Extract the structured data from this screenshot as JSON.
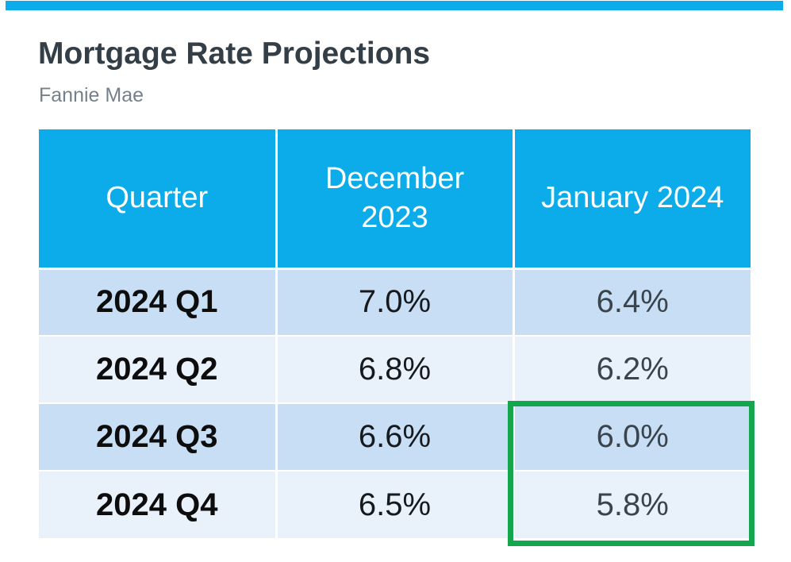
{
  "page": {
    "title": "Mortgage Rate Projections",
    "subtitle": "Fannie Mae"
  },
  "colors": {
    "accent_bar": "#0BACE9",
    "header_bg": "#0BACE9",
    "header_text": "#FFFFFF",
    "row_odd_bg": "#C8DEF4",
    "row_even_bg": "#E9F1FA",
    "quarter_text": "#0D0D0D",
    "december_value_text": "#16191D",
    "january_value_text": "#3A444D",
    "title_text": "#343E46",
    "subtitle_text": "#75808A",
    "highlight_border": "#13A64C"
  },
  "table": {
    "headers": [
      {
        "label": "Quarter"
      },
      {
        "label": "December 2023"
      },
      {
        "label": "January 2024"
      }
    ],
    "rows": [
      {
        "quarter": "2024 Q1",
        "dec": "7.0%",
        "jan": "6.4%"
      },
      {
        "quarter": "2024 Q2",
        "dec": "6.8%",
        "jan": "6.2%"
      },
      {
        "quarter": "2024 Q3",
        "dec": "6.6%",
        "jan": "6.0%"
      },
      {
        "quarter": "2024 Q4",
        "dec": "6.5%",
        "jan": "5.8%"
      }
    ]
  },
  "highlight": {
    "description": "Green rectangle outlining the January 2024 values for 2024 Q3 and 2024 Q4",
    "highlighted_values": [
      "6.0%",
      "5.8%"
    ]
  },
  "chart_data": {
    "type": "table",
    "title": "Mortgage Rate Projections",
    "subtitle": "Fannie Mae",
    "columns": [
      "Quarter",
      "December 2023",
      "January 2024"
    ],
    "categories": [
      "2024 Q1",
      "2024 Q2",
      "2024 Q3",
      "2024 Q4"
    ],
    "series": [
      {
        "name": "December 2023",
        "values": [
          7.0,
          6.8,
          6.6,
          6.5
        ],
        "unit": "%"
      },
      {
        "name": "January 2024",
        "values": [
          6.4,
          6.2,
          6.0,
          5.8
        ],
        "unit": "%"
      }
    ],
    "annotations": [
      "January 2024 projections for 2024 Q3 (6.0%) and 2024 Q4 (5.8%) are outlined with a green box"
    ]
  }
}
